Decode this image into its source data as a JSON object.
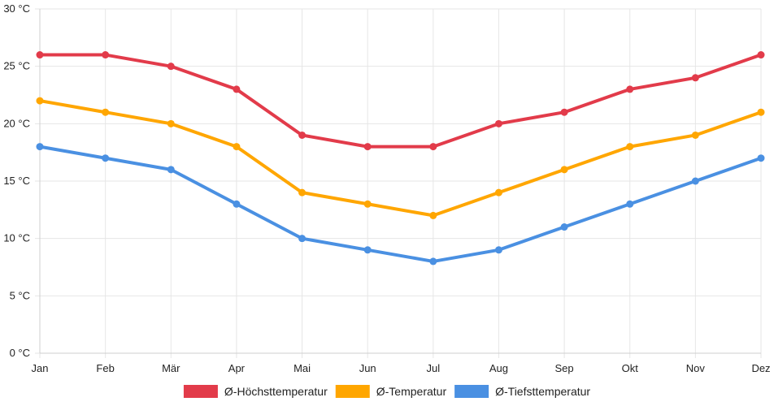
{
  "chart_data": {
    "type": "line",
    "title": "",
    "xlabel": "",
    "ylabel": "",
    "categories": [
      "Jan",
      "Feb",
      "Mär",
      "Apr",
      "Mai",
      "Jun",
      "Jul",
      "Aug",
      "Sep",
      "Okt",
      "Nov",
      "Dez"
    ],
    "ylim": [
      0,
      30
    ],
    "y_ticks": [
      0,
      5,
      10,
      15,
      20,
      25,
      30
    ],
    "y_unit": "°C",
    "y_tick_labels": [
      "0 °C",
      "5 °C",
      "10 °C",
      "15 °C",
      "20 °C",
      "25 °C",
      "30 °C"
    ],
    "grid": true,
    "legend_position": "bottom-center",
    "series": [
      {
        "name": "Ø-Höchsttemperatur",
        "color": "#e23b4a",
        "values": [
          26,
          26,
          25,
          23,
          19,
          18,
          18,
          20,
          21,
          23,
          24,
          26
        ]
      },
      {
        "name": "Ø-Temperatur",
        "color": "#ffa600",
        "values": [
          22,
          21,
          20,
          18,
          14,
          13,
          12,
          14,
          16,
          18,
          19,
          21
        ]
      },
      {
        "name": "Ø-Tiefsttemperatur",
        "color": "#4a90e2",
        "values": [
          18,
          17,
          16,
          13,
          10,
          9,
          8,
          9,
          11,
          13,
          15,
          17
        ]
      }
    ]
  }
}
